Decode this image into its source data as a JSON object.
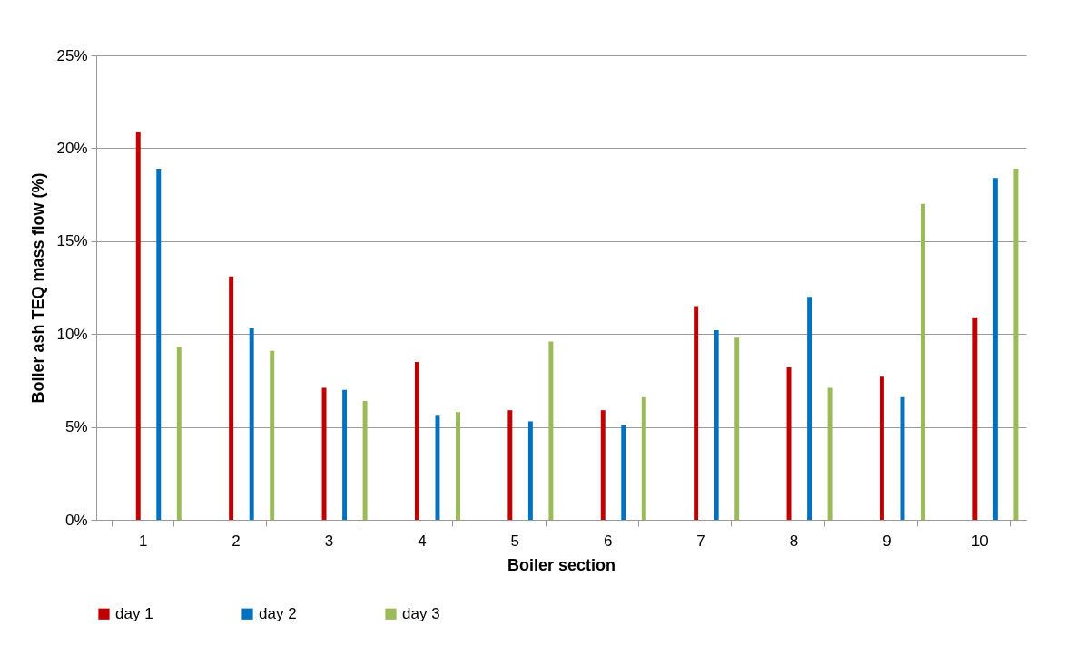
{
  "chart_data": {
    "type": "bar",
    "xlabel": "Boiler section",
    "ylabel": "Boiler ash TEQ mass flow (%)",
    "categories": [
      "1",
      "2",
      "3",
      "4",
      "5",
      "6",
      "7",
      "8",
      "9",
      "10"
    ],
    "series": [
      {
        "name": "day 1",
        "color": "#c00000",
        "values": [
          20.9,
          13.1,
          7.1,
          8.5,
          5.9,
          5.9,
          11.5,
          8.2,
          7.7,
          10.9
        ]
      },
      {
        "name": "day 2",
        "color": "#0070c0",
        "values": [
          18.9,
          10.3,
          7.0,
          5.6,
          5.3,
          5.1,
          10.2,
          12.0,
          6.6,
          18.4
        ]
      },
      {
        "name": "day 3",
        "color": "#9bbb59",
        "values": [
          9.3,
          9.1,
          6.4,
          5.8,
          9.6,
          6.6,
          9.8,
          7.1,
          17.0,
          18.9
        ]
      }
    ],
    "ylim": [
      0,
      25
    ],
    "yticks": [
      {
        "value": 0,
        "label": "0%"
      },
      {
        "value": 5,
        "label": "5%"
      },
      {
        "value": 10,
        "label": "10%"
      },
      {
        "value": 15,
        "label": "15%"
      },
      {
        "value": 20,
        "label": "20%"
      },
      {
        "value": 25,
        "label": "25%"
      }
    ],
    "grid": "y",
    "legend": "bottom"
  }
}
